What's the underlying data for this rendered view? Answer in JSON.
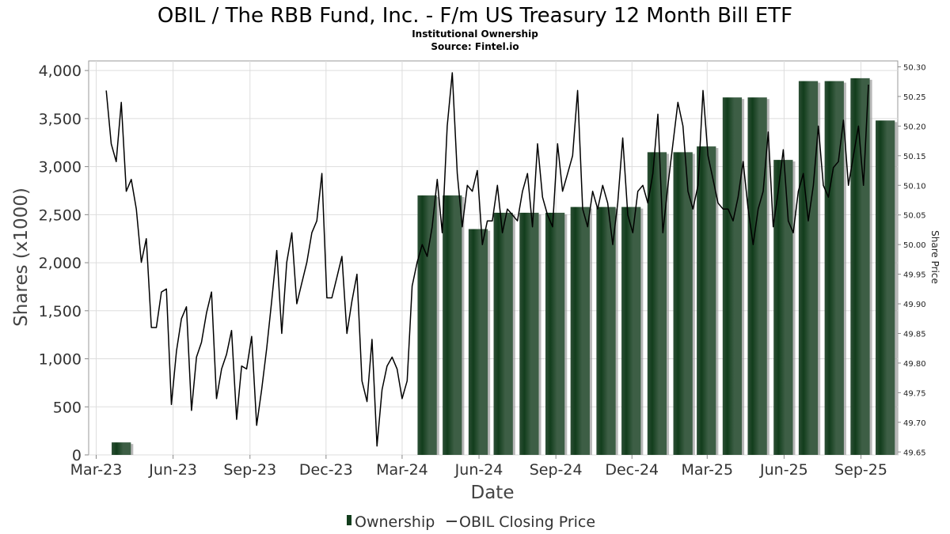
{
  "chart_data": {
    "type": "bar",
    "title": "OBIL / The RBB Fund, Inc. - F/m US Treasury 12 Month Bill ETF",
    "subtitle": "Institutional Ownership",
    "source": "Source: Fintel.io",
    "xlabel": "Date",
    "ylabel": "Shares (x1000)",
    "ylabel_right": "Share Price",
    "ylim": [
      0,
      4100
    ],
    "ylim_right": [
      49.645,
      50.31
    ],
    "grid": true,
    "x_range": [
      "2023-02-20",
      "2025-10-15"
    ],
    "x_ticks": [
      {
        "date": "2023-03-01",
        "label": "Mar-23"
      },
      {
        "date": "2023-06-01",
        "label": "Jun-23"
      },
      {
        "date": "2023-09-01",
        "label": "Sep-23"
      },
      {
        "date": "2023-12-01",
        "label": "Dec-23"
      },
      {
        "date": "2024-03-01",
        "label": "Mar-24"
      },
      {
        "date": "2024-06-01",
        "label": "Jun-24"
      },
      {
        "date": "2024-09-01",
        "label": "Sep-24"
      },
      {
        "date": "2024-12-01",
        "label": "Dec-24"
      },
      {
        "date": "2025-03-01",
        "label": "Mar-25"
      },
      {
        "date": "2025-06-01",
        "label": "Jun-25"
      },
      {
        "date": "2025-09-01",
        "label": "Sep-25"
      }
    ],
    "y_ticks": [
      {
        "value": 0,
        "label": "0"
      },
      {
        "value": 500,
        "label": "500"
      },
      {
        "value": 1000,
        "label": "1,000"
      },
      {
        "value": 1500,
        "label": "1,500"
      },
      {
        "value": 2000,
        "label": "2,000"
      },
      {
        "value": 2500,
        "label": "2,500"
      },
      {
        "value": 3000,
        "label": "3,000"
      },
      {
        "value": 3500,
        "label": "3,500"
      },
      {
        "value": 4000,
        "label": "4,000"
      }
    ],
    "y_ticks_right": [
      {
        "value": 49.65,
        "label": "49.65"
      },
      {
        "value": 49.7,
        "label": "49.70"
      },
      {
        "value": 49.75,
        "label": "49.75"
      },
      {
        "value": 49.8,
        "label": "49.80"
      },
      {
        "value": 49.85,
        "label": "49.85"
      },
      {
        "value": 49.9,
        "label": "49.90"
      },
      {
        "value": 49.95,
        "label": "49.95"
      },
      {
        "value": 50.0,
        "label": "50.00"
      },
      {
        "value": 50.05,
        "label": "50.05"
      },
      {
        "value": 50.1,
        "label": "50.10"
      },
      {
        "value": 50.15,
        "label": "50.15"
      },
      {
        "value": 50.2,
        "label": "50.20"
      },
      {
        "value": 50.25,
        "label": "50.25"
      },
      {
        "value": 50.3,
        "label": "50.30"
      }
    ],
    "legend": {
      "placement": "bottom",
      "items": [
        "Ownership",
        "OBIL Closing Price"
      ]
    },
    "colors": {
      "bar_light": "#3d5e45",
      "bar_dark": "#123d1c",
      "bar_shadow": "#9a9a9a",
      "line": "#000000",
      "grid": "#dddddd"
    },
    "series": [
      {
        "name": "Ownership",
        "type": "bar",
        "points": [
          {
            "date": "2023-03-31",
            "value": 130
          },
          {
            "date": "2024-03-31",
            "value": 2700
          },
          {
            "date": "2024-04-30",
            "value": 2700
          },
          {
            "date": "2024-05-31",
            "value": 2350
          },
          {
            "date": "2024-06-30",
            "value": 2520
          },
          {
            "date": "2024-07-31",
            "value": 2520
          },
          {
            "date": "2024-08-31",
            "value": 2520
          },
          {
            "date": "2024-09-30",
            "value": 2580
          },
          {
            "date": "2024-10-31",
            "value": 2580
          },
          {
            "date": "2024-11-30",
            "value": 2580
          },
          {
            "date": "2024-12-31",
            "value": 3150
          },
          {
            "date": "2025-01-31",
            "value": 3150
          },
          {
            "date": "2025-02-28",
            "value": 3210
          },
          {
            "date": "2025-03-31",
            "value": 3720
          },
          {
            "date": "2025-04-30",
            "value": 3720
          },
          {
            "date": "2025-05-31",
            "value": 3070
          },
          {
            "date": "2025-06-30",
            "value": 3890
          },
          {
            "date": "2025-07-31",
            "value": 3890
          },
          {
            "date": "2025-08-31",
            "value": 3920
          },
          {
            "date": "2025-09-30",
            "value": 3480
          }
        ]
      },
      {
        "name": "OBIL Closing Price",
        "type": "line",
        "axis": "right",
        "points": [
          {
            "date": "2023-03-13",
            "value": 50.26
          },
          {
            "date": "2023-03-19",
            "value": 50.17
          },
          {
            "date": "2023-03-25",
            "value": 50.14
          },
          {
            "date": "2023-03-31",
            "value": 50.24
          },
          {
            "date": "2023-04-06",
            "value": 50.09
          },
          {
            "date": "2023-04-12",
            "value": 50.11
          },
          {
            "date": "2023-04-18",
            "value": 50.06
          },
          {
            "date": "2023-04-24",
            "value": 49.97
          },
          {
            "date": "2023-04-30",
            "value": 50.01
          },
          {
            "date": "2023-05-06",
            "value": 49.86
          },
          {
            "date": "2023-05-12",
            "value": 49.86
          },
          {
            "date": "2023-05-18",
            "value": 49.92
          },
          {
            "date": "2023-05-24",
            "value": 49.925
          },
          {
            "date": "2023-05-30",
            "value": 49.73
          },
          {
            "date": "2023-06-05",
            "value": 49.82
          },
          {
            "date": "2023-06-11",
            "value": 49.875
          },
          {
            "date": "2023-06-17",
            "value": 49.895
          },
          {
            "date": "2023-06-23",
            "value": 49.72
          },
          {
            "date": "2023-06-29",
            "value": 49.81
          },
          {
            "date": "2023-07-05",
            "value": 49.835
          },
          {
            "date": "2023-07-11",
            "value": 49.885
          },
          {
            "date": "2023-07-17",
            "value": 49.92
          },
          {
            "date": "2023-07-23",
            "value": 49.74
          },
          {
            "date": "2023-07-29",
            "value": 49.79
          },
          {
            "date": "2023-08-04",
            "value": 49.815
          },
          {
            "date": "2023-08-10",
            "value": 49.855
          },
          {
            "date": "2023-08-16",
            "value": 49.705
          },
          {
            "date": "2023-08-22",
            "value": 49.795
          },
          {
            "date": "2023-08-28",
            "value": 49.79
          },
          {
            "date": "2023-09-03",
            "value": 49.845
          },
          {
            "date": "2023-09-09",
            "value": 49.695
          },
          {
            "date": "2023-09-15",
            "value": 49.755
          },
          {
            "date": "2023-09-21",
            "value": 49.825
          },
          {
            "date": "2023-09-27",
            "value": 49.905
          },
          {
            "date": "2023-10-03",
            "value": 49.99
          },
          {
            "date": "2023-10-09",
            "value": 49.85
          },
          {
            "date": "2023-10-15",
            "value": 49.97
          },
          {
            "date": "2023-10-21",
            "value": 50.02
          },
          {
            "date": "2023-10-27",
            "value": 49.9
          },
          {
            "date": "2023-11-02",
            "value": 49.935
          },
          {
            "date": "2023-11-08",
            "value": 49.97
          },
          {
            "date": "2023-11-14",
            "value": 50.02
          },
          {
            "date": "2023-11-20",
            "value": 50.04
          },
          {
            "date": "2023-11-26",
            "value": 50.12
          },
          {
            "date": "2023-12-02",
            "value": 49.91
          },
          {
            "date": "2023-12-08",
            "value": 49.91
          },
          {
            "date": "2023-12-14",
            "value": 49.945
          },
          {
            "date": "2023-12-20",
            "value": 49.98
          },
          {
            "date": "2023-12-26",
            "value": 49.85
          },
          {
            "date": "2024-01-01",
            "value": 49.905
          },
          {
            "date": "2024-01-07",
            "value": 49.95
          },
          {
            "date": "2024-01-13",
            "value": 49.77
          },
          {
            "date": "2024-01-19",
            "value": 49.735
          },
          {
            "date": "2024-01-25",
            "value": 49.84
          },
          {
            "date": "2024-01-31",
            "value": 49.66
          },
          {
            "date": "2024-02-06",
            "value": 49.755
          },
          {
            "date": "2024-02-12",
            "value": 49.795
          },
          {
            "date": "2024-02-18",
            "value": 49.81
          },
          {
            "date": "2024-02-24",
            "value": 49.79
          },
          {
            "date": "2024-03-01",
            "value": 49.74
          },
          {
            "date": "2024-03-07",
            "value": 49.77
          },
          {
            "date": "2024-03-13",
            "value": 49.93
          },
          {
            "date": "2024-03-19",
            "value": 49.97
          },
          {
            "date": "2024-03-25",
            "value": 50.0
          },
          {
            "date": "2024-03-31",
            "value": 49.98
          },
          {
            "date": "2024-04-06",
            "value": 50.03
          },
          {
            "date": "2024-04-12",
            "value": 50.11
          },
          {
            "date": "2024-04-18",
            "value": 50.02
          },
          {
            "date": "2024-04-24",
            "value": 50.2
          },
          {
            "date": "2024-04-30",
            "value": 50.29
          },
          {
            "date": "2024-05-06",
            "value": 50.12
          },
          {
            "date": "2024-05-12",
            "value": 50.03
          },
          {
            "date": "2024-05-18",
            "value": 50.1
          },
          {
            "date": "2024-05-24",
            "value": 50.09
          },
          {
            "date": "2024-05-30",
            "value": 50.125
          },
          {
            "date": "2024-06-05",
            "value": 50.0
          },
          {
            "date": "2024-06-11",
            "value": 50.04
          },
          {
            "date": "2024-06-17",
            "value": 50.04
          },
          {
            "date": "2024-06-23",
            "value": 50.1
          },
          {
            "date": "2024-06-29",
            "value": 50.02
          },
          {
            "date": "2024-07-05",
            "value": 50.06
          },
          {
            "date": "2024-07-11",
            "value": 50.05
          },
          {
            "date": "2024-07-17",
            "value": 50.04
          },
          {
            "date": "2024-07-23",
            "value": 50.09
          },
          {
            "date": "2024-07-29",
            "value": 50.12
          },
          {
            "date": "2024-08-04",
            "value": 50.03
          },
          {
            "date": "2024-08-10",
            "value": 50.17
          },
          {
            "date": "2024-08-16",
            "value": 50.08
          },
          {
            "date": "2024-08-22",
            "value": 50.05
          },
          {
            "date": "2024-08-28",
            "value": 50.03
          },
          {
            "date": "2024-09-03",
            "value": 50.17
          },
          {
            "date": "2024-09-09",
            "value": 50.09
          },
          {
            "date": "2024-09-15",
            "value": 50.12
          },
          {
            "date": "2024-09-21",
            "value": 50.15
          },
          {
            "date": "2024-09-27",
            "value": 50.26
          },
          {
            "date": "2024-10-03",
            "value": 50.06
          },
          {
            "date": "2024-10-09",
            "value": 50.03
          },
          {
            "date": "2024-10-15",
            "value": 50.09
          },
          {
            "date": "2024-10-21",
            "value": 50.06
          },
          {
            "date": "2024-10-27",
            "value": 50.1
          },
          {
            "date": "2024-11-02",
            "value": 50.07
          },
          {
            "date": "2024-11-08",
            "value": 50.0
          },
          {
            "date": "2024-11-14",
            "value": 50.07
          },
          {
            "date": "2024-11-20",
            "value": 50.18
          },
          {
            "date": "2024-11-26",
            "value": 50.05
          },
          {
            "date": "2024-12-02",
            "value": 50.02
          },
          {
            "date": "2024-12-08",
            "value": 50.09
          },
          {
            "date": "2024-12-14",
            "value": 50.1
          },
          {
            "date": "2024-12-20",
            "value": 50.07
          },
          {
            "date": "2024-12-26",
            "value": 50.12
          },
          {
            "date": "2025-01-01",
            "value": 50.22
          },
          {
            "date": "2025-01-07",
            "value": 50.02
          },
          {
            "date": "2025-01-13",
            "value": 50.1
          },
          {
            "date": "2025-01-19",
            "value": 50.17
          },
          {
            "date": "2025-01-25",
            "value": 50.24
          },
          {
            "date": "2025-01-31",
            "value": 50.2
          },
          {
            "date": "2025-02-06",
            "value": 50.09
          },
          {
            "date": "2025-02-12",
            "value": 50.06
          },
          {
            "date": "2025-02-18",
            "value": 50.1
          },
          {
            "date": "2025-02-24",
            "value": 50.26
          },
          {
            "date": "2025-03-02",
            "value": 50.15
          },
          {
            "date": "2025-03-08",
            "value": 50.11
          },
          {
            "date": "2025-03-14",
            "value": 50.07
          },
          {
            "date": "2025-03-20",
            "value": 50.06
          },
          {
            "date": "2025-03-26",
            "value": 50.06
          },
          {
            "date": "2025-04-01",
            "value": 50.04
          },
          {
            "date": "2025-04-07",
            "value": 50.08
          },
          {
            "date": "2025-04-13",
            "value": 50.14
          },
          {
            "date": "2025-04-19",
            "value": 50.06
          },
          {
            "date": "2025-04-25",
            "value": 50.0
          },
          {
            "date": "2025-05-01",
            "value": 50.06
          },
          {
            "date": "2025-05-07",
            "value": 50.09
          },
          {
            "date": "2025-05-13",
            "value": 50.19
          },
          {
            "date": "2025-05-19",
            "value": 50.03
          },
          {
            "date": "2025-05-25",
            "value": 50.09
          },
          {
            "date": "2025-05-31",
            "value": 50.16
          },
          {
            "date": "2025-06-06",
            "value": 50.04
          },
          {
            "date": "2025-06-12",
            "value": 50.02
          },
          {
            "date": "2025-06-18",
            "value": 50.09
          },
          {
            "date": "2025-06-24",
            "value": 50.12
          },
          {
            "date": "2025-06-30",
            "value": 50.04
          },
          {
            "date": "2025-07-06",
            "value": 50.1
          },
          {
            "date": "2025-07-12",
            "value": 50.2
          },
          {
            "date": "2025-07-18",
            "value": 50.1
          },
          {
            "date": "2025-07-24",
            "value": 50.08
          },
          {
            "date": "2025-07-30",
            "value": 50.13
          },
          {
            "date": "2025-08-05",
            "value": 50.14
          },
          {
            "date": "2025-08-11",
            "value": 50.21
          },
          {
            "date": "2025-08-17",
            "value": 50.1
          },
          {
            "date": "2025-08-23",
            "value": 50.15
          },
          {
            "date": "2025-08-29",
            "value": 50.2
          },
          {
            "date": "2025-09-04",
            "value": 50.1
          },
          {
            "date": "2025-09-10",
            "value": 50.27
          }
        ]
      }
    ]
  }
}
